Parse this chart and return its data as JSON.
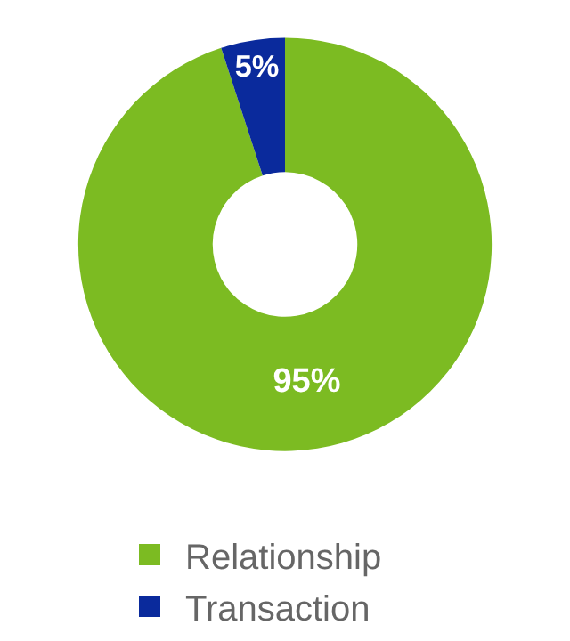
{
  "chart_data": {
    "type": "donut",
    "categories": [
      "Relationship",
      "Transaction"
    ],
    "values": [
      95,
      5
    ],
    "colors": [
      "#7cbb22",
      "#0a2a9c"
    ],
    "value_labels": [
      "95%",
      "5%"
    ],
    "legend": "bottom"
  }
}
